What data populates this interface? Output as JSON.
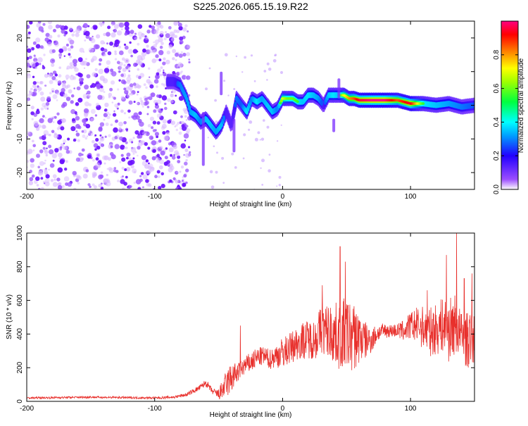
{
  "title": "S225.2026.065.15.19.R22",
  "colors": {
    "snr_line": "#e8302c",
    "noise": "#8a3cff",
    "ridge_core": "#e8212b"
  },
  "chart_data": [
    {
      "type": "heatmap",
      "title": "S225.2026.065.15.19.R22",
      "xlabel": "Height of straight line (km)",
      "ylabel": "Frequency (Hz)",
      "xlim": [
        -200,
        150
      ],
      "ylim": [
        -25,
        25
      ],
      "x_ticks": [
        -200,
        -100,
        0,
        100
      ],
      "x_tick_labels": [
        "-200",
        "-100",
        "0",
        "100"
      ],
      "y_ticks": [
        -20,
        -10,
        0,
        10,
        20
      ],
      "y_tick_labels": [
        "-20",
        "-10",
        "0",
        "10",
        "20"
      ],
      "colorbar": {
        "label": "Normalized spectral amplitude",
        "range": [
          0,
          1
        ],
        "ticks": [
          0.0,
          0.2,
          0.4,
          0.6,
          0.8
        ],
        "tick_labels": [
          "0.0",
          "0.2",
          "0.4",
          "0.6",
          "0.8"
        ]
      },
      "ridge": {
        "x": [
          -90,
          -85,
          -80,
          -75,
          -72,
          -68,
          -64,
          -60,
          -56,
          -52,
          -48,
          -44,
          -40,
          -36,
          -32,
          -28,
          -24,
          -20,
          -16,
          -12,
          -8,
          -4,
          0,
          4,
          8,
          12,
          16,
          20,
          24,
          28,
          32,
          36,
          40,
          44,
          48,
          52,
          56,
          60,
          70,
          80,
          90,
          100,
          110,
          120,
          130,
          140,
          150
        ],
        "y": [
          7,
          7,
          6,
          2,
          -2,
          -3,
          -5,
          -4,
          -6,
          -8,
          -6,
          -2,
          -6,
          2,
          0,
          -2,
          2,
          1,
          2,
          0,
          -2,
          -1,
          2,
          2,
          2,
          1,
          1,
          3,
          3,
          2,
          0,
          3,
          3,
          3,
          3,
          2,
          2,
          1.5,
          1.5,
          1.5,
          1.5,
          0.5,
          0.5,
          0,
          0.5,
          -0.5,
          0
        ],
        "amplitude": [
          0.3,
          0.3,
          0.4,
          0.45,
          0.45,
          0.5,
          0.4,
          0.5,
          0.5,
          0.45,
          0.5,
          0.3,
          0.25,
          0.4,
          0.35,
          0.55,
          0.4,
          0.55,
          0.45,
          0.5,
          0.5,
          0.4,
          0.7,
          0.6,
          0.6,
          0.55,
          0.5,
          0.55,
          0.5,
          0.45,
          0.3,
          0.5,
          0.55,
          0.5,
          0.7,
          0.8,
          0.85,
          0.95,
          1.0,
          1.0,
          0.85,
          0.95,
          0.55,
          0.5,
          0.45,
          0.4,
          0.35
        ]
      },
      "noise_region_x": [
        -200,
        -78
      ]
    },
    {
      "type": "line",
      "xlabel": "Height of straight line (km)",
      "ylabel": "SNR (10 * v/v)",
      "xlim": [
        -200,
        150
      ],
      "ylim": [
        0,
        1000
      ],
      "x_ticks": [
        -200,
        -100,
        0,
        100
      ],
      "x_tick_labels": [
        "-200",
        "-100",
        "0",
        "100"
      ],
      "y_ticks": [
        0,
        200,
        400,
        600,
        800,
        1000
      ],
      "y_tick_labels": [
        "0",
        "200",
        "400",
        "600",
        "800",
        "1000"
      ],
      "series": [
        {
          "name": "SNR",
          "x": [
            -200,
            -150,
            -100,
            -85,
            -75,
            -65,
            -60,
            -55,
            -50,
            -45,
            -40,
            -35,
            -30,
            -25,
            -20,
            -15,
            -10,
            -5,
            0,
            5,
            10,
            15,
            20,
            25,
            30,
            35,
            40,
            45,
            50,
            55,
            60,
            65,
            70,
            75,
            80,
            85,
            90,
            95,
            100,
            105,
            110,
            115,
            120,
            125,
            130,
            135,
            140,
            145,
            150
          ],
          "values": [
            20,
            25,
            20,
            25,
            40,
            80,
            110,
            60,
            40,
            90,
            140,
            170,
            210,
            230,
            260,
            270,
            250,
            270,
            290,
            310,
            340,
            360,
            370,
            370,
            420,
            420,
            400,
            390,
            400,
            380,
            380,
            360,
            370,
            410,
            420,
            420,
            420,
            420,
            450,
            450,
            440,
            410,
            430,
            450,
            420,
            460,
            380,
            360,
            380
          ],
          "spread": [
            10,
            12,
            12,
            15,
            20,
            30,
            40,
            30,
            60,
            140,
            180,
            100,
            100,
            110,
            110,
            100,
            110,
            130,
            170,
            170,
            180,
            200,
            210,
            220,
            280,
            300,
            330,
            380,
            400,
            380,
            300,
            200,
            140,
            90,
            80,
            70,
            80,
            120,
            150,
            200,
            230,
            260,
            280,
            300,
            350,
            330,
            280,
            300,
            300
          ],
          "peaks": [
            {
              "x": -33,
              "y": 450
            },
            {
              "x": 31,
              "y": 690
            },
            {
              "x": 45,
              "y": 920
            },
            {
              "x": 49,
              "y": 830
            },
            {
              "x": 113,
              "y": 660
            },
            {
              "x": 128,
              "y": 870
            },
            {
              "x": 136,
              "y": 1000
            },
            {
              "x": 142,
              "y": 730
            },
            {
              "x": 148,
              "y": 760
            }
          ]
        }
      ]
    }
  ]
}
